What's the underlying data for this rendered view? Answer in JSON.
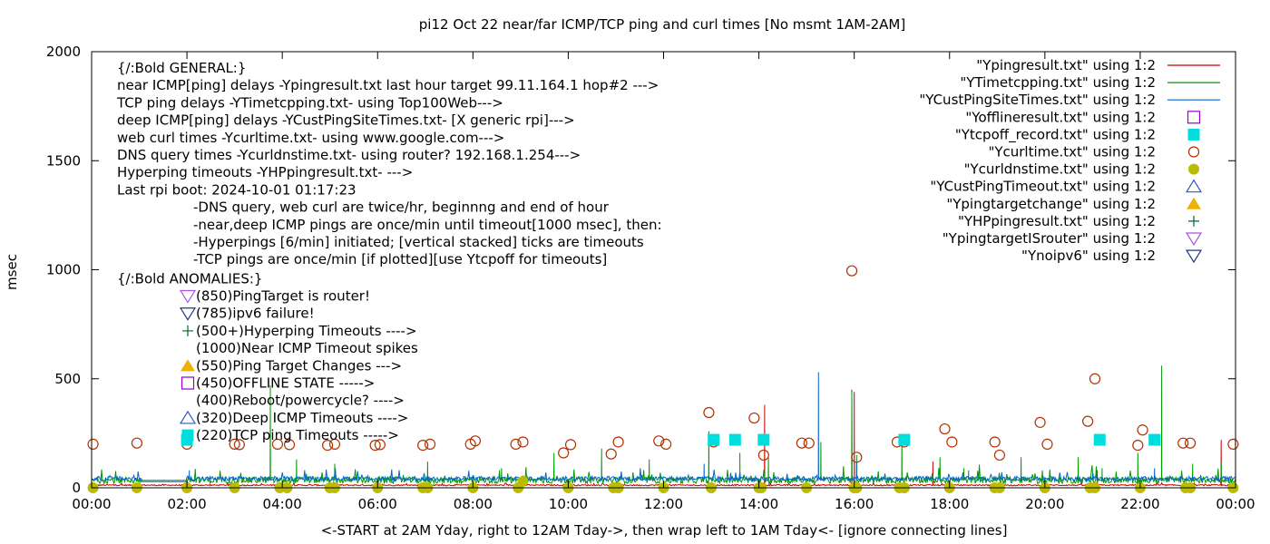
{
  "chart_data": {
    "type": "line",
    "title": "pi12 Oct 22  near/far ICMP/TCP ping and curl times [No msmt 1AM-2AM]",
    "xlabel": "<-START at 2AM Yday, right to 12AM Tday->, then wrap left to 1AM Tday<- [ignore connecting lines]",
    "ylabel": "msec",
    "xlim": [
      0,
      24
    ],
    "ylim": [
      0,
      2000
    ],
    "y_ticks": [
      0,
      500,
      1000,
      1500,
      2000
    ],
    "x_ticks": [
      {
        "x": 0,
        "label": "00:00"
      },
      {
        "x": 2,
        "label": "02:00"
      },
      {
        "x": 4,
        "label": "04:00"
      },
      {
        "x": 6,
        "label": "06:00"
      },
      {
        "x": 8,
        "label": "08:00"
      },
      {
        "x": 10,
        "label": "10:00"
      },
      {
        "x": 12,
        "label": "12:00"
      },
      {
        "x": 14,
        "label": "14:00"
      },
      {
        "x": 16,
        "label": "16:00"
      },
      {
        "x": 18,
        "label": "18:00"
      },
      {
        "x": 20,
        "label": "20:00"
      },
      {
        "x": 22,
        "label": "22:00"
      },
      {
        "x": 24,
        "label": "00:00"
      }
    ],
    "legend_position": "top-right",
    "legend": [
      {
        "label": "\"Ypingresult.txt\" using 1:2",
        "kind": "line",
        "color": "#cc0000"
      },
      {
        "label": "\"YTimetcpping.txt\" using 1:2",
        "kind": "line",
        "color": "#009900"
      },
      {
        "label": "\"YCustPingSiteTimes.txt\" using 1:2",
        "kind": "line",
        "color": "#0066cc"
      },
      {
        "label": "\"Yofflineresult.txt\" using 1:2",
        "kind": "open-square",
        "color": "#9900cc"
      },
      {
        "label": "\"Ytcpoff_record.txt\" using 1:2",
        "kind": "filled-square",
        "color": "#00dddd"
      },
      {
        "label": "\"Ycurltime.txt\" using 1:2",
        "kind": "open-circle",
        "color": "#b03000"
      },
      {
        "label": "\"Ycurldnstime.txt\" using 1:2",
        "kind": "filled-circle",
        "color": "#bbbb00"
      },
      {
        "label": "\"YCustPingTimeout.txt\" using 1:2",
        "kind": "open-triangle-up",
        "color": "#3355cc"
      },
      {
        "label": "\"Ypingtargetchange\" using 1:2",
        "kind": "filled-triangle-up",
        "color": "#f0b000"
      },
      {
        "label": "\"YHPpingresult.txt\" using 1:2",
        "kind": "plus",
        "color": "#006633"
      },
      {
        "label": "\"YpingtargetISrouter\" using 1:2",
        "kind": "open-triangle-down",
        "color": "#aa55dd"
      },
      {
        "label": "\"Ynoipv6\" using 1:2",
        "kind": "open-triangle-down",
        "color": "#1a3a8a"
      }
    ],
    "annotation_lines": [
      "{/:Bold GENERAL:}",
      "near ICMP[ping] delays -Ypingresult.txt last hour target 99.11.164.1 hop#2 --->",
      "TCP ping delays -YTimetcpping.txt- using Top100Web--->",
      "deep ICMP[ping] delays -YCustPingSiteTimes.txt- [X generic rpi]--->",
      "web curl times -Ycurltime.txt- using www.google.com--->",
      "DNS query times -Ycurldnstime.txt- using router? 192.168.1.254--->",
      "Hyperping timeouts -YHPpingresult.txt- --->",
      "Last rpi boot: 2024-10-01 01:17:23"
    ],
    "annotation_notes": [
      "-DNS query, web curl are twice/hr, beginnng and end of hour",
      "-near,deep ICMP pings are once/min until timeout[1000 msec], then:",
      "  -Hyperpings [6/min] initiated; [vertical stacked] ticks are timeouts",
      "-TCP pings are once/min [if plotted][use Ytcpoff for timeouts]"
    ],
    "anomalies_title": "{/:Bold ANOMALIES:}",
    "anomalies": [
      {
        "marker": "open-triangle-down",
        "color": "#aa55dd",
        "text": "(850)PingTarget is router!"
      },
      {
        "marker": "open-triangle-down",
        "color": "#1a3a8a",
        "text": "(785)ipv6 failure!"
      },
      {
        "marker": "plus",
        "color": "#006633",
        "text": "(500+)Hyperping Timeouts ---->"
      },
      {
        "marker": "none",
        "color": "#000000",
        "text": "(1000)Near ICMP Timeout spikes"
      },
      {
        "marker": "filled-triangle-up",
        "color": "#f0b000",
        "text": "(550)Ping Target Changes --->"
      },
      {
        "marker": "open-square",
        "color": "#9900cc",
        "text": "(450)OFFLINE STATE ----->"
      },
      {
        "marker": "none",
        "color": "#000000",
        "text": "(400)Reboot/powercycle? ---->"
      },
      {
        "marker": "open-triangle-up",
        "color": "#3355cc",
        "text": "(320)Deep ICMP Timeouts ---->"
      },
      {
        "marker": "filled-square",
        "color": "#00dddd",
        "text": "(220)TCP ping Timeouts ----->"
      }
    ],
    "series": [
      {
        "name": "\"Ypingresult.txt\" using 1:2",
        "color": "#cc0000",
        "baseline": 12,
        "noise": 3,
        "spikes": [
          [
            14.12,
            380
          ],
          [
            15.95,
            450
          ],
          [
            16.0,
            440
          ],
          [
            17.65,
            120
          ],
          [
            21.1,
            80
          ],
          [
            23.7,
            220
          ]
        ]
      },
      {
        "name": "\"YTimetcpping.txt\" using 1:2",
        "color": "#009900",
        "baseline": 35,
        "noise": 15,
        "spikes": [
          [
            3.75,
            470
          ],
          [
            4.3,
            130
          ],
          [
            5.1,
            110
          ],
          [
            7.05,
            120
          ],
          [
            8.6,
            90
          ],
          [
            9.7,
            160
          ],
          [
            10.7,
            180
          ],
          [
            11.7,
            130
          ],
          [
            12.95,
            260
          ],
          [
            13.6,
            160
          ],
          [
            14.2,
            140
          ],
          [
            15.3,
            210
          ],
          [
            15.95,
            440
          ],
          [
            16.05,
            150
          ],
          [
            17.0,
            230
          ],
          [
            17.8,
            140
          ],
          [
            18.3,
            90
          ],
          [
            19.5,
            140
          ],
          [
            20.7,
            140
          ],
          [
            21.2,
            90
          ],
          [
            21.95,
            160
          ],
          [
            22.45,
            560
          ],
          [
            23.1,
            110
          ],
          [
            23.7,
            120
          ]
        ]
      },
      {
        "name": "\"YCustPingSiteTimes.txt\" using 1:2",
        "color": "#0066cc",
        "baseline": 42,
        "noise": 10,
        "spikes": [
          [
            2.05,
            80
          ],
          [
            12.85,
            110
          ],
          [
            15.25,
            530
          ],
          [
            16.05,
            120
          ],
          [
            18.4,
            80
          ],
          [
            22.3,
            90
          ]
        ]
      },
      {
        "name": "\"Ycurltime.txt\" using 1:2",
        "color": "#b03000",
        "points": [
          [
            0.03,
            200
          ],
          [
            0.95,
            205
          ],
          [
            2.0,
            200
          ],
          [
            3.0,
            200
          ],
          [
            3.1,
            198
          ],
          [
            3.9,
            200
          ],
          [
            4.15,
            198
          ],
          [
            4.95,
            195
          ],
          [
            5.1,
            200
          ],
          [
            5.95,
            195
          ],
          [
            6.05,
            198
          ],
          [
            6.95,
            195
          ],
          [
            7.1,
            200
          ],
          [
            7.95,
            200
          ],
          [
            8.05,
            215
          ],
          [
            8.9,
            200
          ],
          [
            9.05,
            210
          ],
          [
            9.9,
            160
          ],
          [
            10.05,
            198
          ],
          [
            10.9,
            155
          ],
          [
            11.05,
            210
          ],
          [
            11.9,
            215
          ],
          [
            12.05,
            200
          ],
          [
            12.95,
            345
          ],
          [
            13.05,
            210
          ],
          [
            13.9,
            320
          ],
          [
            14.1,
            150
          ],
          [
            14.9,
            205
          ],
          [
            15.05,
            205
          ],
          [
            15.95,
            995
          ],
          [
            16.05,
            140
          ],
          [
            16.9,
            210
          ],
          [
            17.05,
            210
          ],
          [
            17.9,
            270
          ],
          [
            18.05,
            210
          ],
          [
            18.95,
            210
          ],
          [
            19.05,
            150
          ],
          [
            19.9,
            300
          ],
          [
            20.05,
            200
          ],
          [
            20.9,
            305
          ],
          [
            21.05,
            500
          ],
          [
            21.95,
            195
          ],
          [
            22.05,
            265
          ],
          [
            22.9,
            205
          ],
          [
            23.05,
            205
          ],
          [
            23.95,
            200
          ]
        ]
      },
      {
        "name": "\"Ycurldnstime.txt\" using 1:2",
        "color": "#bbbb00",
        "points": [
          [
            0.03,
            0
          ],
          [
            0.95,
            0
          ],
          [
            2.0,
            0
          ],
          [
            3.0,
            0
          ],
          [
            3.95,
            0
          ],
          [
            4.1,
            0
          ],
          [
            5.0,
            0
          ],
          [
            5.1,
            0
          ],
          [
            6.0,
            0
          ],
          [
            6.95,
            0
          ],
          [
            7.05,
            0
          ],
          [
            8.0,
            0
          ],
          [
            8.95,
            0
          ],
          [
            9.05,
            30
          ],
          [
            10.0,
            0
          ],
          [
            10.95,
            0
          ],
          [
            11.05,
            0
          ],
          [
            12.0,
            0
          ],
          [
            13.0,
            0
          ],
          [
            14.0,
            0
          ],
          [
            14.05,
            0
          ],
          [
            15.0,
            0
          ],
          [
            16.0,
            0
          ],
          [
            16.05,
            0
          ],
          [
            16.95,
            0
          ],
          [
            17.05,
            0
          ],
          [
            18.0,
            0
          ],
          [
            18.95,
            0
          ],
          [
            19.05,
            0
          ],
          [
            20.0,
            0
          ],
          [
            20.95,
            0
          ],
          [
            21.05,
            0
          ],
          [
            22.0,
            0
          ],
          [
            22.95,
            0
          ],
          [
            23.05,
            0
          ],
          [
            23.95,
            0
          ]
        ]
      },
      {
        "name": "\"Ytcpoff_record.txt\" using 1:2",
        "color": "#00dddd",
        "points": [
          [
            2.0,
            220
          ],
          [
            13.05,
            220
          ],
          [
            13.5,
            220
          ],
          [
            14.1,
            220
          ],
          [
            17.05,
            220
          ],
          [
            21.15,
            220
          ],
          [
            22.3,
            220
          ]
        ]
      }
    ]
  }
}
